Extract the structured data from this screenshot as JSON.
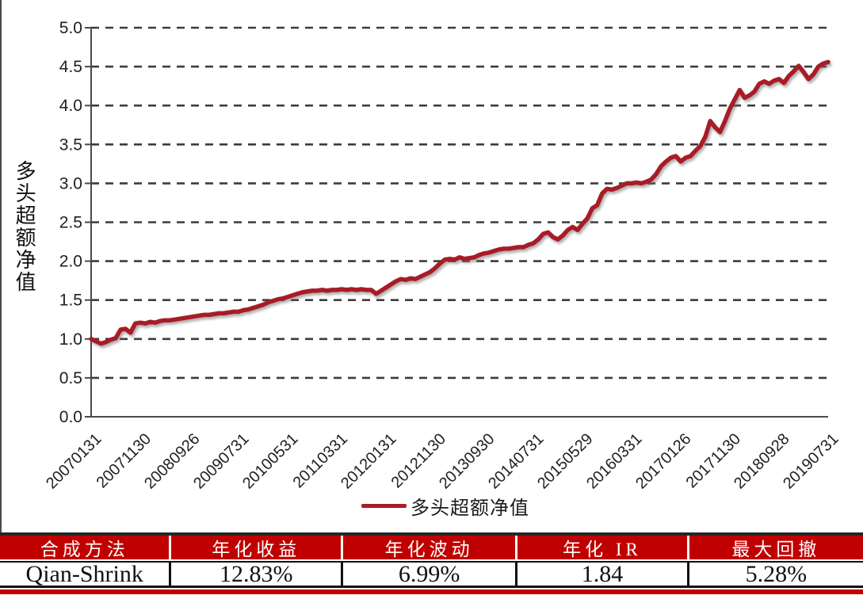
{
  "chart": {
    "y_axis_title": "多头超额净值",
    "legend": {
      "label": "多头超额净值"
    }
  },
  "chart_data": {
    "type": "line",
    "title": "",
    "xlabel": "",
    "ylabel": "多头超额净值",
    "ylim": [
      0.0,
      5.0
    ],
    "y_tick_step": 0.5,
    "y_tick_labels": [
      "0.0",
      "0.5",
      "1.0",
      "1.5",
      "2.0",
      "2.5",
      "3.0",
      "3.5",
      "4.0",
      "4.5",
      "5.0"
    ],
    "grid": "horizontal-dashed",
    "legend_position": "bottom-center",
    "x_tick_labels": [
      "20070131",
      "20071130",
      "20080926",
      "20090731",
      "20100531",
      "20110331",
      "20120131",
      "20121130",
      "20130930",
      "20140731",
      "20150529",
      "20160331",
      "20170126",
      "20171130",
      "20180928",
      "20190731"
    ],
    "x_tick_every_n_points": 10,
    "x_frequency": "monthly, 2007-01 to 2019-07",
    "series": [
      {
        "name": "多头超额净值",
        "color": "#a81c26",
        "values": [
          1.0,
          0.97,
          0.94,
          0.96,
          0.99,
          1.01,
          1.12,
          1.13,
          1.08,
          1.2,
          1.21,
          1.2,
          1.22,
          1.21,
          1.23,
          1.24,
          1.24,
          1.25,
          1.26,
          1.27,
          1.28,
          1.29,
          1.3,
          1.31,
          1.31,
          1.32,
          1.33,
          1.33,
          1.34,
          1.35,
          1.35,
          1.37,
          1.38,
          1.4,
          1.42,
          1.44,
          1.47,
          1.49,
          1.51,
          1.52,
          1.54,
          1.56,
          1.58,
          1.6,
          1.61,
          1.62,
          1.62,
          1.63,
          1.62,
          1.63,
          1.63,
          1.64,
          1.63,
          1.64,
          1.63,
          1.64,
          1.63,
          1.63,
          1.58,
          1.62,
          1.66,
          1.7,
          1.74,
          1.77,
          1.76,
          1.78,
          1.77,
          1.8,
          1.83,
          1.86,
          1.91,
          1.97,
          2.02,
          2.03,
          2.02,
          2.05,
          2.03,
          2.04,
          2.05,
          2.08,
          2.1,
          2.11,
          2.13,
          2.15,
          2.16,
          2.16,
          2.17,
          2.18,
          2.18,
          2.21,
          2.23,
          2.28,
          2.35,
          2.37,
          2.31,
          2.28,
          2.33,
          2.4,
          2.44,
          2.4,
          2.48,
          2.55,
          2.68,
          2.72,
          2.87,
          2.93,
          2.92,
          2.94,
          2.97,
          3.0,
          3.0,
          3.01,
          3.0,
          3.02,
          3.05,
          3.12,
          3.22,
          3.28,
          3.33,
          3.35,
          3.28,
          3.33,
          3.35,
          3.42,
          3.48,
          3.6,
          3.8,
          3.72,
          3.66,
          3.8,
          3.96,
          4.08,
          4.2,
          4.1,
          4.13,
          4.18,
          4.28,
          4.31,
          4.28,
          4.32,
          4.34,
          4.29,
          4.38,
          4.44,
          4.51,
          4.43,
          4.34,
          4.4,
          4.5,
          4.54,
          4.56
        ]
      }
    ]
  },
  "table": {
    "headers": [
      "合成方法",
      "年化收益",
      "年化波动",
      "年化 IR",
      "最大回撤"
    ],
    "row": [
      "Qian-Shrink",
      "12.83%",
      "6.99%",
      "1.84",
      "5.28%"
    ]
  },
  "colors": {
    "line": "#a81c26",
    "table_header_bg": "#c00000",
    "bottom_bar": "#c00000",
    "grid": "#3c3c3c",
    "axis": "#4a4a4a",
    "tick_text": "#1f1f1f"
  }
}
